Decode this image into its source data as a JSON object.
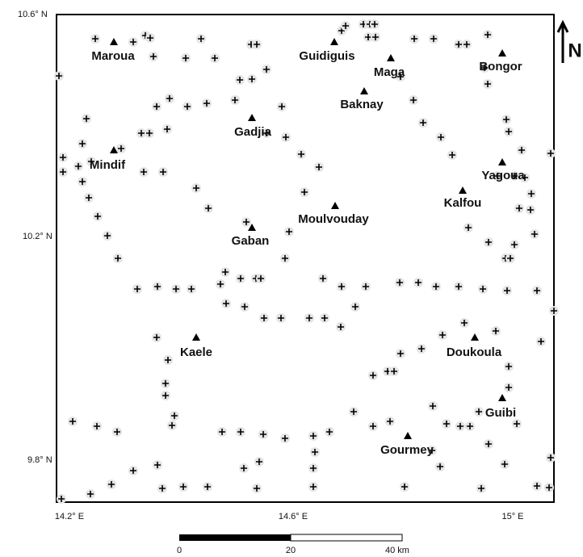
{
  "map": {
    "towns": [
      "Maroua",
      "Guidiguis",
      "Maga",
      "Bongor",
      "Baknay",
      "Gadjia",
      "Mindif",
      "Yagoua",
      "Kalfou",
      "Moulvouday",
      "Gaban",
      "Kaele",
      "Doukoula",
      "Guibi",
      "Gourmey"
    ],
    "latitude_labels": [
      "10.6° N",
      "10.2° N",
      "9.8° N"
    ],
    "longitude_labels": [
      "14.2° E",
      "14.6° E",
      "15° E"
    ],
    "scale_labels": [
      "0",
      "20",
      "40 km"
    ],
    "north": "N"
  }
}
